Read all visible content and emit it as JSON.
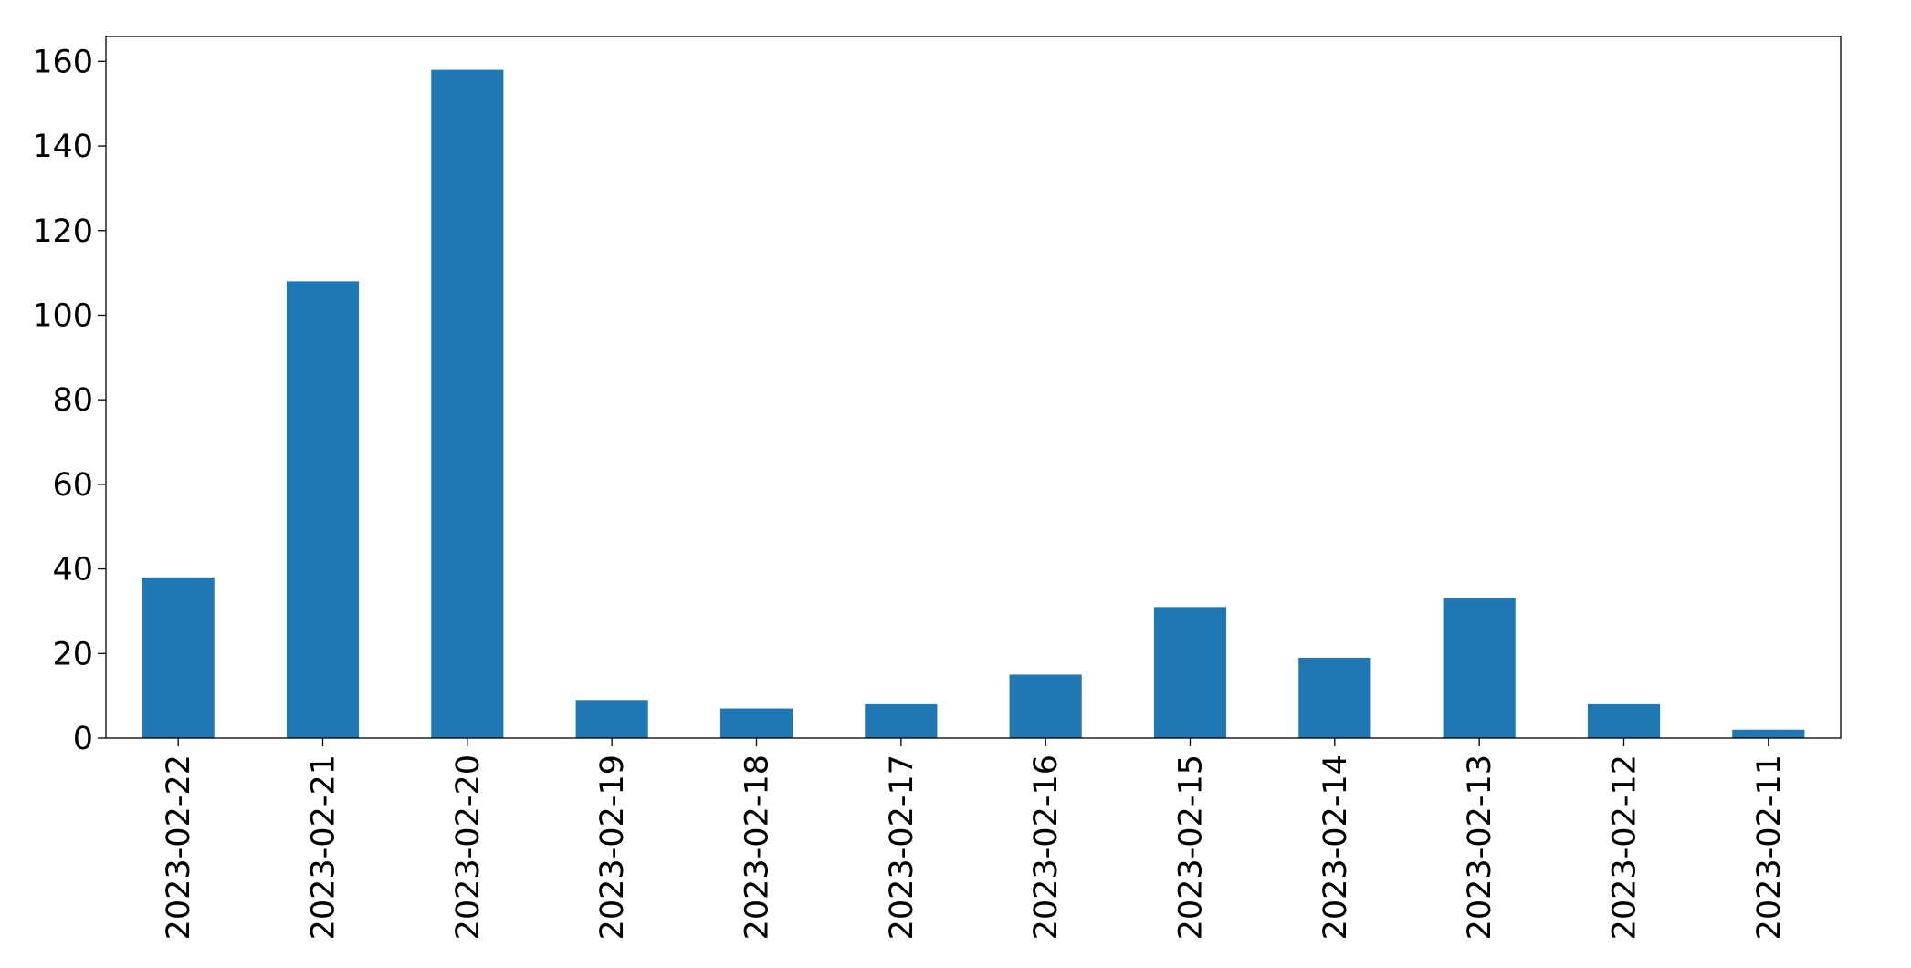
{
  "chart_data": {
    "type": "bar",
    "categories": [
      "2023-02-22",
      "2023-02-21",
      "2023-02-20",
      "2023-02-19",
      "2023-02-18",
      "2023-02-17",
      "2023-02-16",
      "2023-02-15",
      "2023-02-14",
      "2023-02-13",
      "2023-02-12",
      "2023-02-11"
    ],
    "values": [
      38,
      108,
      158,
      9,
      7,
      8,
      15,
      31,
      19,
      33,
      8,
      2
    ],
    "color": "#1f77b4",
    "ylim": [
      0,
      165.9
    ],
    "yticks": [
      0,
      20,
      40,
      60,
      80,
      100,
      120,
      140,
      160
    ],
    "grid": false
  }
}
